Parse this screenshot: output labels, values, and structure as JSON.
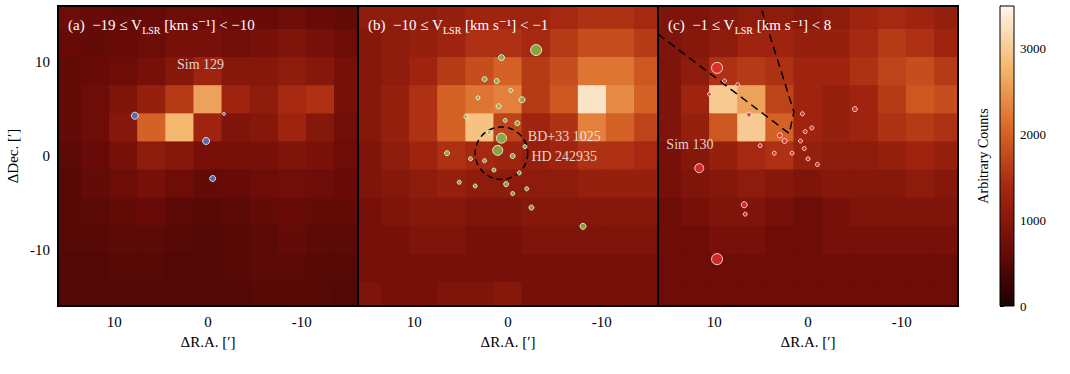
{
  "chart_data": [
    {
      "type": "heatmap",
      "title_parts": [
        "(a)  −19 ≤ V",
        "LSR",
        " [km s⁻¹] < −10"
      ],
      "xlabel": "ΔR.A. [′]",
      "ylabel": "ΔDec. [′]",
      "xlim": [
        16,
        -16
      ],
      "ylim": [
        -16,
        16
      ],
      "xticks": [
        10,
        0,
        -10
      ],
      "yticks": [
        -10,
        0,
        10
      ],
      "tick_labels": true,
      "x": [
        15,
        12,
        9,
        6,
        3,
        0,
        -3,
        -6,
        -9,
        -12,
        -15
      ],
      "y": [
        15,
        12,
        9,
        6,
        3,
        0,
        -3,
        -6,
        -9,
        -12,
        -15
      ],
      "z": [
        [
          700,
          650,
          600,
          650,
          700,
          700,
          650,
          650,
          700,
          650,
          600
        ],
        [
          650,
          600,
          650,
          700,
          800,
          800,
          750,
          800,
          900,
          800,
          700
        ],
        [
          600,
          650,
          700,
          800,
          1000,
          1300,
          1000,
          1000,
          1100,
          1000,
          800
        ],
        [
          600,
          700,
          900,
          1200,
          1600,
          2600,
          1300,
          1100,
          1400,
          1500,
          800
        ],
        [
          600,
          700,
          1000,
          2000,
          2800,
          1300,
          900,
          1000,
          1300,
          1000,
          750
        ],
        [
          550,
          650,
          800,
          1100,
          1000,
          800,
          800,
          800,
          900,
          850,
          700
        ],
        [
          500,
          600,
          700,
          800,
          700,
          600,
          650,
          700,
          750,
          700,
          650
        ],
        [
          500,
          550,
          600,
          650,
          550,
          500,
          550,
          600,
          650,
          600,
          600
        ],
        [
          500,
          500,
          550,
          550,
          500,
          450,
          500,
          550,
          600,
          550,
          550
        ],
        [
          450,
          450,
          500,
          500,
          450,
          450,
          500,
          550,
          550,
          500,
          500
        ],
        [
          450,
          450,
          450,
          450,
          450,
          450,
          450,
          500,
          500,
          500,
          450
        ]
      ],
      "points": {
        "color": "#4f7fd6",
        "marker": "circle",
        "x": [
          7.8,
          0.2,
          -0.5,
          -1.7
        ],
        "y": [
          4.3,
          1.6,
          -2.4,
          4.5
        ],
        "sizes": [
          7,
          7,
          6,
          3
        ]
      },
      "labels": [
        {
          "text": "Sim 129",
          "x": 0.8,
          "y": 9.8
        }
      ]
    },
    {
      "type": "heatmap",
      "title_parts": [
        "(b)  −10 ≤ V",
        "LSR",
        " [km s⁻¹] < −1"
      ],
      "xlabel": "ΔR.A. [′]",
      "xlim": [
        16,
        -16
      ],
      "ylim": [
        -16,
        16
      ],
      "xticks": [
        10,
        0,
        -10
      ],
      "yticks": [
        -10,
        0,
        10
      ],
      "tick_labels": "x",
      "x": [
        15,
        12,
        9,
        6,
        3,
        0,
        -3,
        -6,
        -9,
        -12,
        -15
      ],
      "y": [
        15,
        12,
        9,
        6,
        3,
        0,
        -3,
        -6,
        -9,
        -12,
        -15
      ],
      "z": [
        [
          1100,
          1100,
          1100,
          1200,
          1300,
          1300,
          1300,
          1400,
          1500,
          1500,
          1400
        ],
        [
          1000,
          1100,
          1200,
          1300,
          1500,
          1500,
          1400,
          1600,
          1800,
          1800,
          1600
        ],
        [
          1000,
          1100,
          1300,
          1600,
          1800,
          2000,
          1600,
          1800,
          2200,
          2200,
          1900
        ],
        [
          1000,
          1200,
          1500,
          2000,
          2200,
          2300,
          1600,
          1900,
          3300,
          2400,
          2000
        ],
        [
          1000,
          1200,
          1500,
          2000,
          2900,
          1700,
          1300,
          1500,
          2300,
          2000,
          1700
        ],
        [
          900,
          1100,
          1300,
          1500,
          1400,
          1300,
          1200,
          1300,
          1500,
          1500,
          1400
        ],
        [
          900,
          1000,
          1100,
          1200,
          1100,
          1100,
          1100,
          1100,
          1200,
          1200,
          1200
        ],
        [
          800,
          900,
          1000,
          1000,
          900,
          900,
          1000,
          1000,
          1000,
          1000,
          1000
        ],
        [
          800,
          800,
          900,
          900,
          800,
          800,
          900,
          900,
          900,
          900,
          900
        ],
        [
          800,
          800,
          800,
          800,
          800,
          800,
          800,
          800,
          800,
          800,
          800
        ],
        [
          900,
          800,
          800,
          900,
          900,
          1000,
          800,
          800,
          800,
          800,
          800
        ]
      ],
      "points": {
        "color": "#7dc24a",
        "marker": "circle",
        "x": [
          -3.0,
          0.7,
          2.5,
          1.2,
          -0.3,
          3.2,
          1.0,
          -1.5,
          4.5,
          0.3,
          -1.0,
          2.0,
          0.7,
          1.1,
          -0.5,
          2.5,
          6.5,
          4.0,
          1.5,
          -1.2,
          0.2,
          3.5,
          -2.0,
          -0.5,
          -2.5,
          -8.0,
          5.2,
          -1.8
        ],
        "y": [
          11.3,
          10.5,
          8.2,
          8.0,
          7.0,
          6.2,
          5.3,
          6.0,
          4.2,
          3.8,
          3.5,
          2.5,
          1.9,
          0.6,
          0.0,
          -0.5,
          0.3,
          -0.3,
          -1.5,
          -1.8,
          -3.0,
          -3.2,
          -3.5,
          -4.0,
          -5.5,
          -7.5,
          -2.8,
          1.0
        ],
        "sizes": [
          11,
          6,
          5,
          5,
          4,
          4,
          5,
          6,
          4,
          4,
          5,
          4,
          10,
          10,
          5,
          4,
          5,
          4,
          4,
          4,
          5,
          4,
          4,
          4,
          5,
          6,
          4,
          4
        ]
      },
      "circle": {
        "x": 0.7,
        "y": 0.3,
        "radius": 2.8
      },
      "labels": [
        {
          "text": "BD+33 1025",
          "x": -6.0,
          "y": 2.1
        },
        {
          "text": "HD 242935",
          "x": -6.0,
          "y": 0.0
        }
      ]
    },
    {
      "type": "heatmap",
      "title_parts": [
        "(c)  −1 ≤ V",
        "LSR",
        " [km s⁻¹] < 8"
      ],
      "xlabel": "ΔR.A. [′]",
      "xlim": [
        16,
        -16
      ],
      "ylim": [
        -16,
        16
      ],
      "xticks": [
        10,
        0,
        -10
      ],
      "yticks": [
        -10,
        0,
        10
      ],
      "tick_labels": "x",
      "x": [
        15,
        12,
        9,
        6,
        3,
        0,
        -3,
        -6,
        -9,
        -12,
        -15
      ],
      "y": [
        15,
        12,
        9,
        6,
        3,
        0,
        -3,
        -6,
        -9,
        -12,
        -15
      ],
      "z": [
        [
          900,
          900,
          1000,
          1100,
          1100,
          1000,
          1100,
          1300,
          1400,
          1300,
          1200
        ],
        [
          900,
          1000,
          1100,
          1300,
          1300,
          1200,
          1200,
          1400,
          1600,
          1500,
          1300
        ],
        [
          900,
          1100,
          1500,
          1600,
          1500,
          1300,
          1300,
          1500,
          1700,
          1800,
          1600
        ],
        [
          900,
          1300,
          3000,
          2600,
          1700,
          1300,
          1200,
          1300,
          1600,
          1900,
          1800
        ],
        [
          900,
          1200,
          1900,
          3000,
          2000,
          1300,
          1200,
          1300,
          1500,
          1600,
          1500
        ],
        [
          800,
          1000,
          1200,
          1400,
          1500,
          1200,
          1100,
          1100,
          1200,
          1300,
          1200
        ],
        [
          800,
          900,
          1000,
          1100,
          1000,
          900,
          1000,
          1000,
          1000,
          1100,
          1000
        ],
        [
          700,
          800,
          900,
          900,
          800,
          700,
          800,
          900,
          900,
          900,
          900
        ],
        [
          700,
          700,
          800,
          800,
          700,
          700,
          800,
          800,
          800,
          800,
          800
        ],
        [
          700,
          700,
          700,
          700,
          700,
          700,
          700,
          700,
          700,
          700,
          700
        ],
        [
          700,
          700,
          700,
          700,
          700,
          700,
          700,
          700,
          700,
          700,
          700
        ]
      ],
      "points": {
        "color": "#e83030",
        "marker": "circle",
        "x": [
          9.7,
          11.6,
          9.7,
          6.8,
          6.7,
          6.3,
          8.9,
          3.6,
          5.1,
          2.5,
          3.0,
          0.8,
          0.4,
          0.0,
          0.3,
          -0.4,
          -1.0,
          -5.0,
          10.5,
          7.5,
          0.6,
          1.7
        ],
        "y": [
          9.4,
          -1.3,
          -11.0,
          -5.2,
          -6.2,
          4.4,
          8.0,
          0.3,
          1.1,
          1.6,
          2.2,
          1.6,
          0.8,
          -0.3,
          2.6,
          3.0,
          -0.9,
          5.0,
          6.6,
          7.6,
          4.5,
          0.3
        ],
        "sizes": [
          11,
          9,
          11,
          6,
          4,
          5,
          4,
          4,
          4,
          5,
          5,
          4,
          4,
          4,
          4,
          4,
          4,
          5,
          4,
          4,
          4,
          4
        ]
      },
      "region": [
        [
          16,
          13
        ],
        [
          2,
          2.4
        ],
        [
          1.5,
          4.7
        ],
        [
          4.9,
          15.5
        ]
      ],
      "labels": [
        {
          "text": "Sim 130",
          "x": 12.6,
          "y": 1.2
        }
      ]
    }
  ],
  "colorbar": {
    "label": "Arbitrary Counts",
    "range": [
      0,
      3500
    ],
    "ticks": [
      0,
      1000,
      2000,
      3000
    ]
  }
}
